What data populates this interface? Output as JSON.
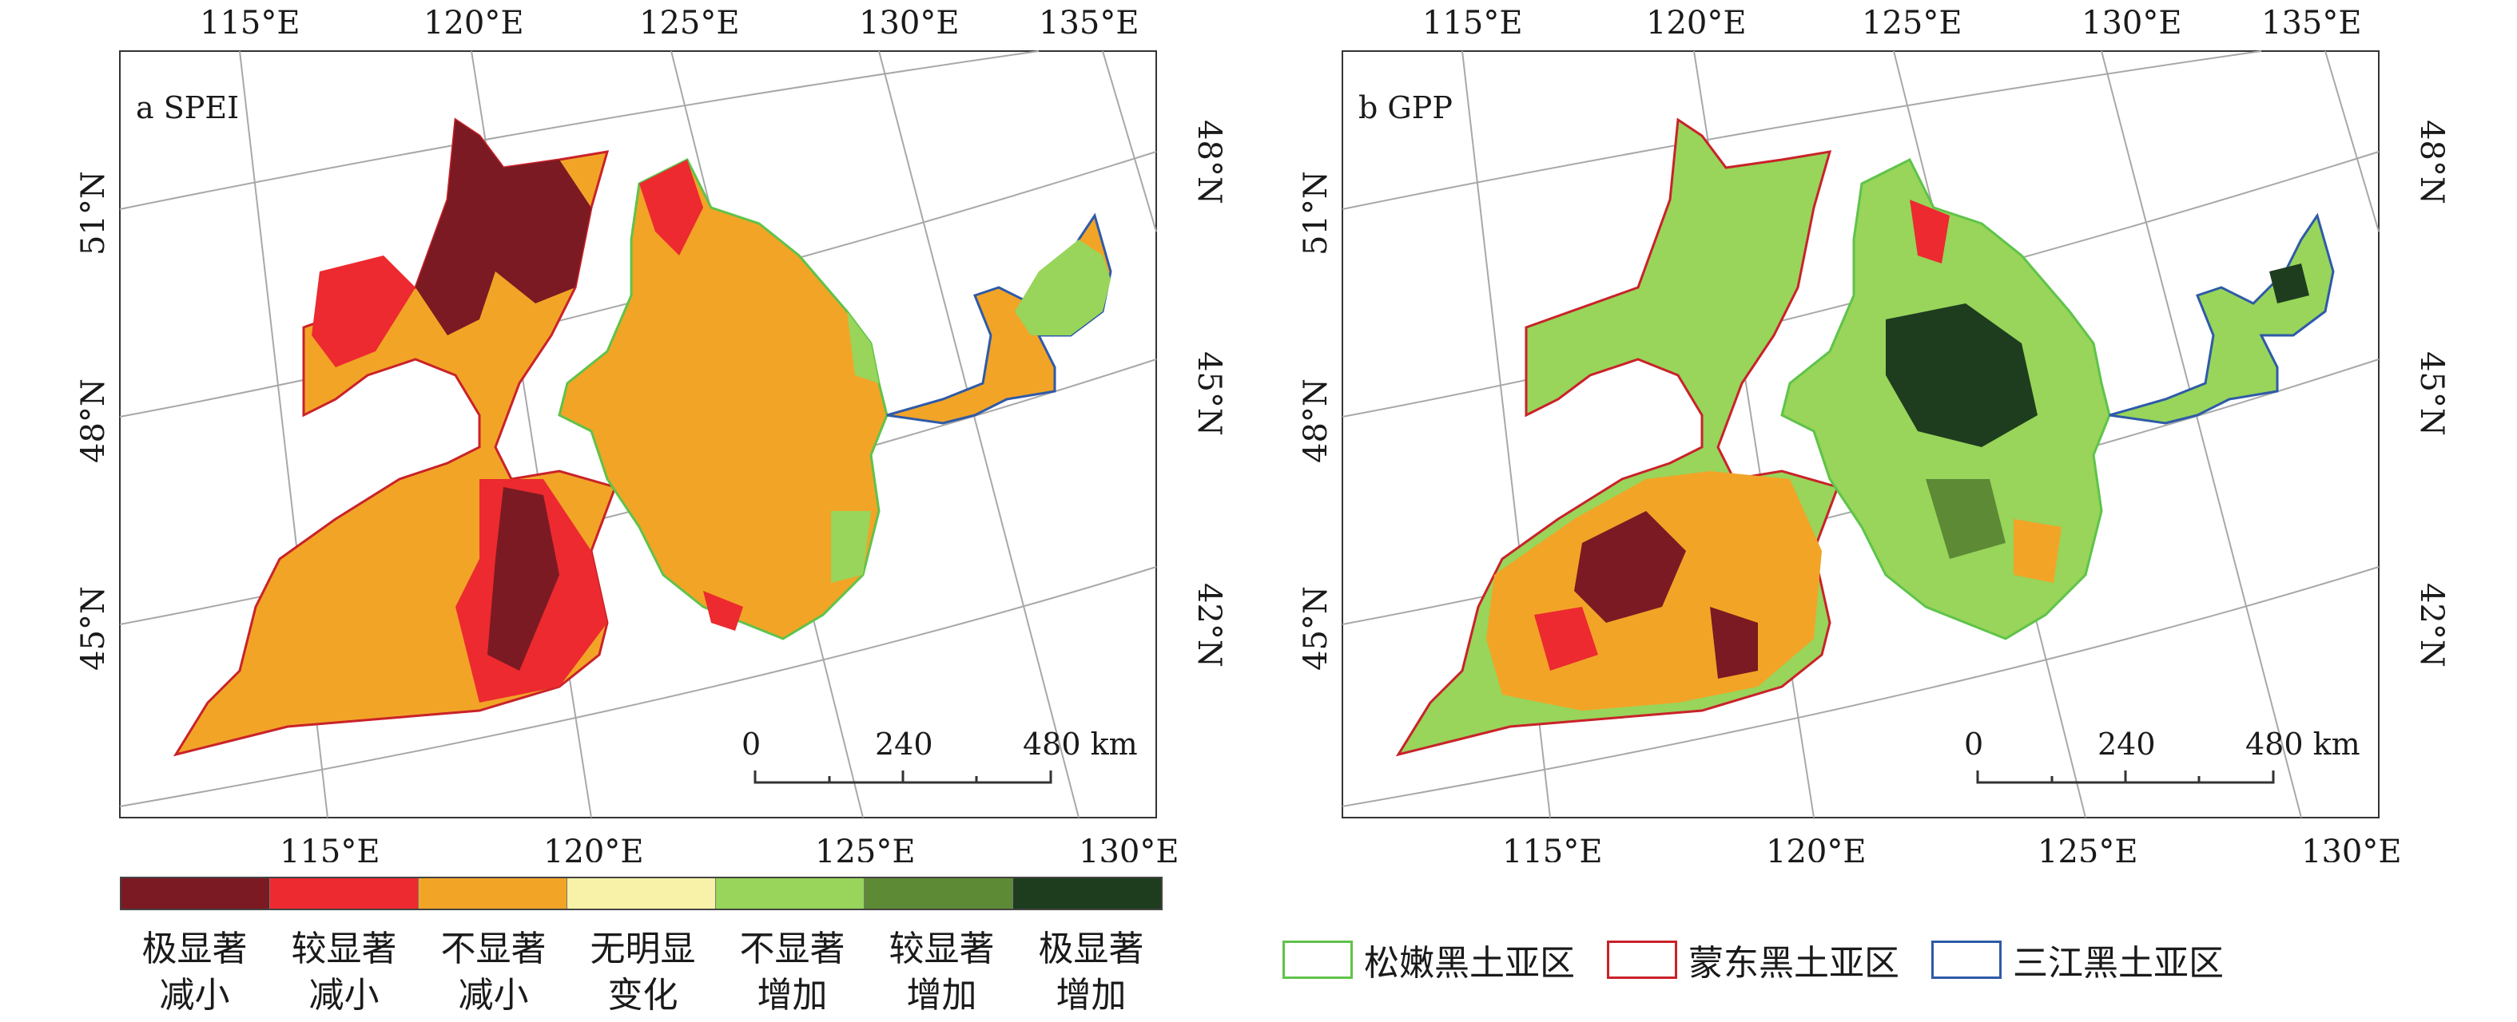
{
  "panel_a": {
    "label": "a SPEI",
    "top_lon_labels": [
      "115°E",
      "120°E",
      "125°E",
      "130°E",
      "135°E"
    ],
    "bottom_lon_labels": [
      "115°E",
      "120°E",
      "125°E",
      "130°E"
    ],
    "left_lat_labels": [
      "51°N",
      "48°N",
      "45°N"
    ],
    "right_lat_labels": [
      "48°N",
      "45°N",
      "42°N"
    ],
    "scale_labels": [
      "0",
      "240",
      "480 km"
    ]
  },
  "panel_b": {
    "label": "b GPP",
    "top_lon_labels": [
      "115°E",
      "120°E",
      "125°E",
      "130°E",
      "135°E"
    ],
    "bottom_lon_labels": [
      "115°E",
      "120°E",
      "125°E",
      "130°E"
    ],
    "left_lat_labels": [
      "51°N",
      "48°N",
      "45°N"
    ],
    "right_lat_labels": [
      "48°N",
      "45°N",
      "42°N"
    ],
    "scale_labels": [
      "0",
      "240",
      "480 km"
    ]
  },
  "trend_legend": [
    {
      "line1": "极显著",
      "line2": "减小",
      "color": "#7b1a22"
    },
    {
      "line1": "较显著",
      "line2": "减小",
      "color": "#ec2a2f"
    },
    {
      "line1": "不显著",
      "line2": "减小",
      "color": "#f2a427"
    },
    {
      "line1": "无明显",
      "line2": "变化",
      "color": "#f7f2a8"
    },
    {
      "line1": "不显著",
      "line2": "增加",
      "color": "#98d55a"
    },
    {
      "line1": "较显著",
      "line2": "增加",
      "color": "#5d8a34"
    },
    {
      "line1": "极显著",
      "line2": "增加",
      "color": "#1e3d1f"
    }
  ],
  "region_legend": [
    {
      "label": "松嫩黑土亚区",
      "color": "#5fc34a"
    },
    {
      "label": "蒙东黑土亚区",
      "color": "#c9222a"
    },
    {
      "label": "三江黑土亚区",
      "color": "#2e5aa8"
    }
  ],
  "colors": {
    "songnen_border": "#5fc34a",
    "mengdong_border": "#c9222a",
    "sanjiang_border": "#2e5aa8",
    "graticule": "#a8a8a8"
  }
}
